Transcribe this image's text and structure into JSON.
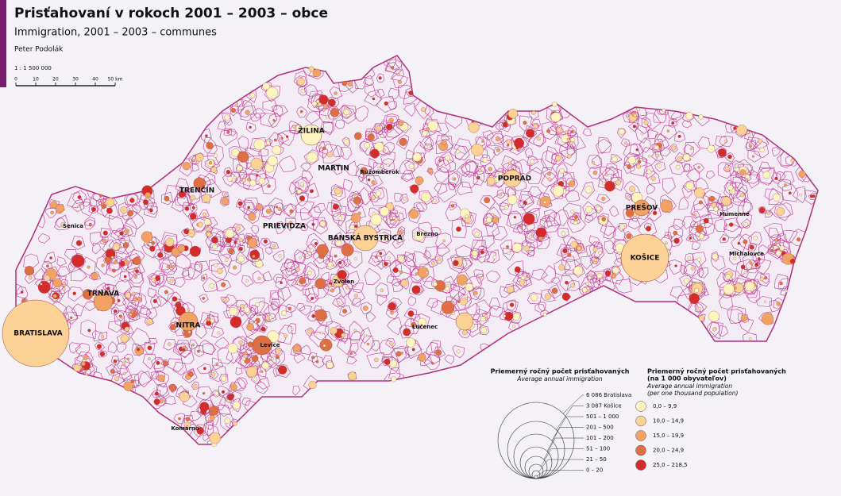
{
  "header": {
    "title": "Prisťahovaní v rokoch 2001 – 2003 – obce",
    "subtitle": "Immigration, 2001 – 2003 – communes",
    "author": "Peter Podolák",
    "scale": "1 : 1 500 000",
    "scale_bar": [
      "0",
      "10",
      "20",
      "30",
      "40",
      "50 km"
    ]
  },
  "cities": [
    "BRATISLAVA",
    "KOŠICE",
    "TRNAVA",
    "NITRA",
    "PREŠOV",
    "BANSKÁ BYSTRICA",
    "ŽILINA",
    "MARTIN",
    "POPRAD",
    "PRIEVIDZA",
    "TRENČÍN",
    "Senica",
    "Zvolen",
    "Levice",
    "Michalovce",
    "Lučenec",
    "Ružomberok",
    "Komárno",
    "Brezno",
    "Humenné"
  ],
  "legend_size": {
    "title": "Priemerný ročný počet prisťahovaných",
    "subtitle": "Average annual immigration",
    "classes": [
      "6 086 Bratislava",
      "3 087 Košice",
      "501 – 1 000",
      "201 – 500",
      "101 – 200",
      "51 – 100",
      "21 – 50",
      "0 – 20"
    ]
  },
  "legend_color": {
    "title": "Priemerný ročný počet prisťahovaných",
    "title2": "(na 1 000 obyvateľov)",
    "subtitle": "Average annual immigration",
    "subtitle2": "(per one thousand population)",
    "classes": [
      {
        "label": "0,0 – 9,9",
        "color": "#fdf4c0"
      },
      {
        "label": "10,0 – 14,9",
        "color": "#fbd196"
      },
      {
        "label": "15,0 – 19,9",
        "color": "#f2a264"
      },
      {
        "label": "20,0 – 24,9",
        "color": "#df6e45"
      },
      {
        "label": "25,0 – 218,5",
        "color": "#d42b2b"
      }
    ]
  }
}
